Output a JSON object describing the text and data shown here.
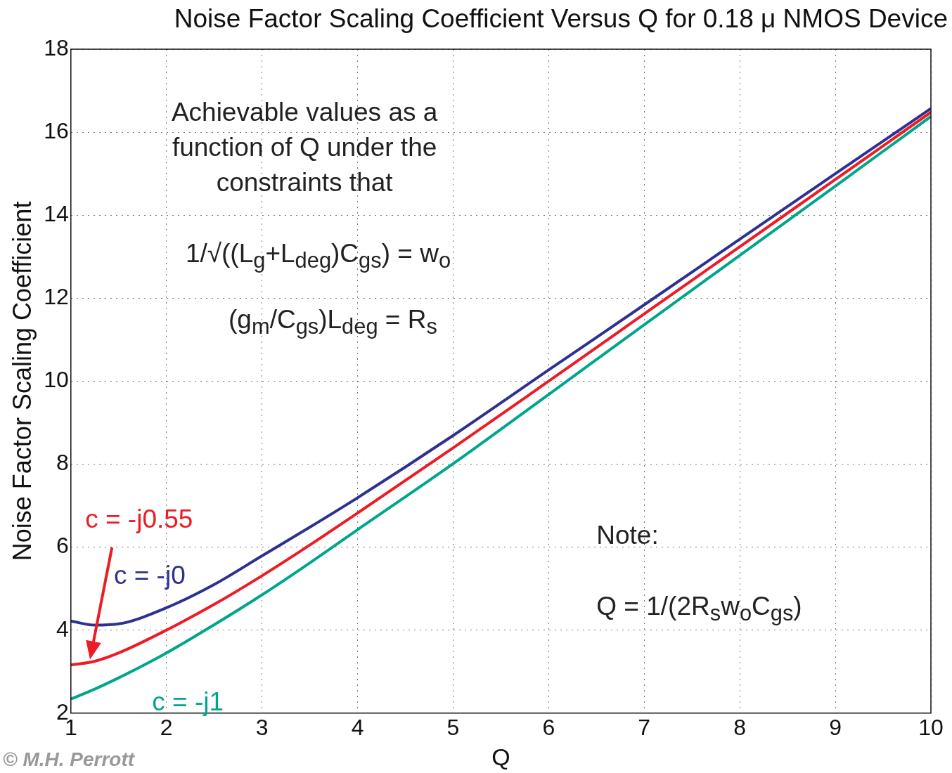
{
  "chart_data": {
    "type": "line",
    "title": "Noise Factor Scaling Coefficient Versus Q for 0.18 μ NMOS Device",
    "xlabel": "Q",
    "ylabel": "Noise Factor Scaling Coefficient",
    "xlim": [
      1,
      10
    ],
    "xticks": [
      1,
      2,
      3,
      4,
      5,
      6,
      7,
      8,
      9,
      10
    ],
    "ylim": [
      2,
      18
    ],
    "yticks": [
      2,
      4,
      6,
      8,
      10,
      12,
      14,
      16,
      18
    ],
    "grid": true,
    "legend": false,
    "series": [
      {
        "name": "c = -j0",
        "color": "#2e3192",
        "x": [
          1,
          1.25,
          1.5,
          2,
          2.5,
          3,
          3.5,
          4,
          5,
          6,
          7,
          8,
          9,
          10
        ],
        "values": [
          4.22,
          4.12,
          4.15,
          4.54,
          5.1,
          5.79,
          6.48,
          7.19,
          8.69,
          10.27,
          11.84,
          13.42,
          15.0,
          16.57
        ]
      },
      {
        "name": "c = -j0.55",
        "color": "#ed1c24",
        "x": [
          1,
          1.25,
          1.5,
          2,
          2.5,
          3,
          3.5,
          4,
          5,
          6,
          7,
          8,
          9,
          10
        ],
        "values": [
          3.16,
          3.25,
          3.45,
          4.0,
          4.62,
          5.31,
          6.05,
          6.82,
          8.39,
          10.0,
          11.62,
          13.24,
          14.86,
          16.48
        ]
      },
      {
        "name": "c = -j1",
        "color": "#00a68c",
        "x": [
          1,
          1.25,
          1.5,
          2,
          2.5,
          3,
          3.5,
          4,
          5,
          6,
          7,
          8,
          9,
          10
        ],
        "values": [
          2.34,
          2.58,
          2.85,
          3.45,
          4.13,
          4.85,
          5.62,
          6.42,
          8.01,
          9.68,
          11.36,
          13.03,
          14.7,
          16.38
        ]
      }
    ],
    "annotations": [
      "Achievable values as a function of Q under the constraints that",
      "1/√((L$_{g}$+L$_{deg}$)C$_{gs}$) = w$_{o}$",
      "(g$_{m}$/C$_{gs}$)L$_{deg}$ = R$_{s}$",
      "Note:",
      "Q = 1/(2R$_{s}$w$_{o}$C$_{gs}$)",
      "© M.H. Perrott"
    ]
  }
}
